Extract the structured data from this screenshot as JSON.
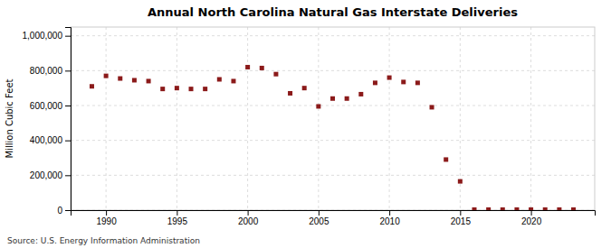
{
  "chart_data": {
    "type": "scatter",
    "title": "Annual North Carolina Natural Gas Interstate Deliveries",
    "ylabel": "Million Cubic Feet",
    "annotations": [
      "Source: U.S. Energy Information Administration"
    ],
    "x": [
      1989,
      1990,
      1991,
      1992,
      1993,
      1994,
      1995,
      1996,
      1997,
      1998,
      1999,
      2000,
      2001,
      2002,
      2003,
      2004,
      2005,
      2006,
      2007,
      2008,
      2009,
      2010,
      2011,
      2012,
      2013,
      2014,
      2015,
      2016,
      2017,
      2018,
      2019,
      2020,
      2021,
      2022,
      2023
    ],
    "values": [
      710000,
      770000,
      755000,
      745000,
      740000,
      695000,
      700000,
      695000,
      695000,
      750000,
      740000,
      820000,
      815000,
      780000,
      670000,
      700000,
      595000,
      640000,
      640000,
      665000,
      730000,
      760000,
      735000,
      730000,
      590000,
      290000,
      165000,
      3000,
      3000,
      3000,
      3000,
      3000,
      3000,
      3000,
      3000
    ],
    "color": "#8b1a1a",
    "marker": "square",
    "xlim": [
      1987.5,
      2024.5
    ],
    "xticks": [
      1990,
      1995,
      2000,
      2005,
      2010,
      2015,
      2020
    ],
    "ylim": [
      0,
      1050000
    ],
    "yticks": [
      0,
      {
        "value": 200000,
        "label": "200,000"
      },
      {
        "value": 400000,
        "label": "400,000"
      },
      {
        "value": 600000,
        "label": "600,000"
      },
      {
        "value": 800000,
        "label": "800,000"
      },
      {
        "value": 1000000,
        "label": "1,000,000"
      }
    ],
    "grid": true
  }
}
